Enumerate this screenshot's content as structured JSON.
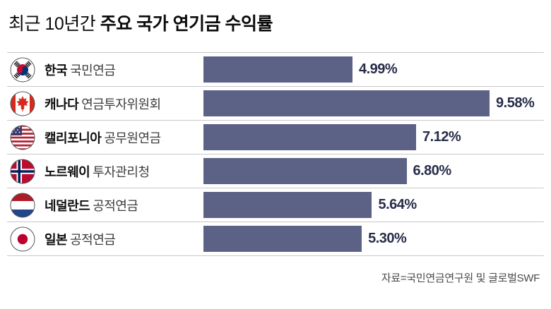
{
  "title": {
    "regular": "최근 10년간",
    "bold": "주요 국가 연기금 수익률"
  },
  "source": "자료=국민연금연구원 및 글로벌SWF",
  "colors": {
    "bar": "#5c6186",
    "value_text": "#272d49"
  },
  "chart_data": {
    "type": "bar",
    "orientation": "horizontal",
    "title": "최근 10년간 주요 국가 연기금 수익률",
    "categories": [
      "한국 국민연금",
      "캐나다 연금투자위원회",
      "캘리포니아 공무원연금",
      "노르웨이 투자관리청",
      "네덜란드 공적연금",
      "일본 공적연금"
    ],
    "values": [
      4.99,
      9.58,
      7.12,
      6.8,
      5.64,
      5.3
    ],
    "unit": "%",
    "xlim": [
      0,
      11.4
    ],
    "legend": "none",
    "grid": "off",
    "rows": [
      {
        "country": "한국",
        "org": "국민연금",
        "value": 4.99,
        "label": "4.99%",
        "flag": "korea-flag-icon"
      },
      {
        "country": "캐나다",
        "org": "연금투자위원회",
        "value": 9.58,
        "label": "9.58%",
        "flag": "canada-flag-icon"
      },
      {
        "country": "캘리포니아",
        "org": "공무원연금",
        "value": 7.12,
        "label": "7.12%",
        "flag": "usa-flag-icon"
      },
      {
        "country": "노르웨이",
        "org": "투자관리청",
        "value": 6.8,
        "label": "6.80%",
        "flag": "norway-flag-icon"
      },
      {
        "country": "네덜란드",
        "org": "공적연금",
        "value": 5.64,
        "label": "5.64%",
        "flag": "netherlands-flag-icon"
      },
      {
        "country": "일본",
        "org": "공적연금",
        "value": 5.3,
        "label": "5.30%",
        "flag": "japan-flag-icon"
      }
    ],
    "source_note": "자료=국민연금연구원 및 글로벌SWF"
  }
}
